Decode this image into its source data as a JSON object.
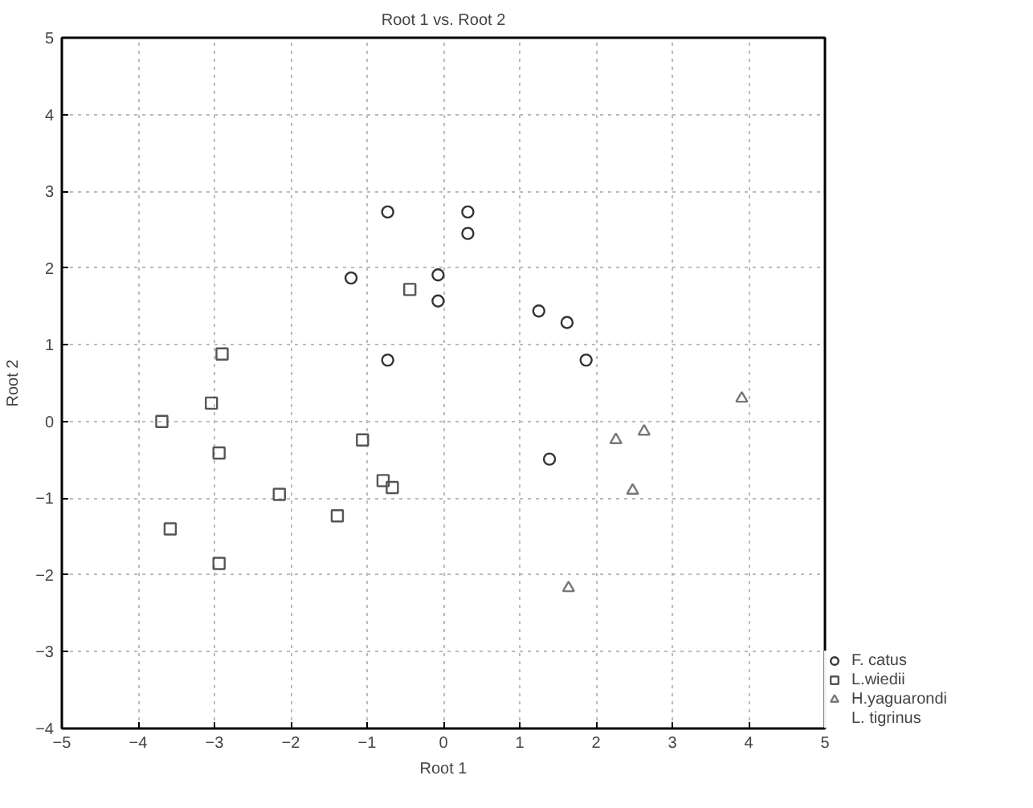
{
  "chart_data": {
    "type": "scatter",
    "title": "Root 1 vs. Root 2",
    "xlabel": "Root 1",
    "ylabel": "Root 2",
    "xlim": [
      -5,
      5
    ],
    "ylim": [
      -4,
      5
    ],
    "xticks": [
      -5,
      -4,
      -3,
      -2,
      -1,
      0,
      1,
      2,
      3,
      4,
      5
    ],
    "yticks": [
      -4,
      -3,
      -2,
      -1,
      0,
      1,
      2,
      3,
      4,
      5
    ],
    "grid": true,
    "legend": "bottom right",
    "series": [
      {
        "name": "F. catus",
        "color": "#333333",
        "marker": "circle",
        "x": [
          -0.73,
          -1.21,
          -0.73,
          -0.07,
          -0.07,
          0.32,
          0.32,
          1.25,
          1.62,
          1.87,
          1.39
        ],
        "values": [
          2.73,
          1.87,
          0.8,
          1.91,
          1.57,
          2.45,
          2.73,
          1.44,
          1.29,
          0.8,
          -0.49
        ]
      },
      {
        "name": "L.wiedii",
        "color": "#555555",
        "marker": "square",
        "x": [
          -3.69,
          -3.04,
          -2.9,
          -2.94,
          -3.58,
          -2.94,
          -2.15,
          -1.39,
          -1.06,
          -0.79,
          -0.67,
          -0.44
        ],
        "values": [
          0.0,
          0.24,
          0.88,
          -0.41,
          -1.4,
          -1.85,
          -0.95,
          -1.23,
          -0.24,
          -0.77,
          -0.86,
          1.72
        ]
      },
      {
        "name": "H.yaguarondi",
        "color": "#777777",
        "marker": "triangle",
        "x": [
          2.48,
          2.26,
          2.63,
          1.64,
          3.91
        ],
        "values": [
          -0.9,
          -0.24,
          -0.13,
          -2.17,
          0.3
        ]
      },
      {
        "name": "L. tigrinus",
        "marker": "none"
      }
    ]
  }
}
